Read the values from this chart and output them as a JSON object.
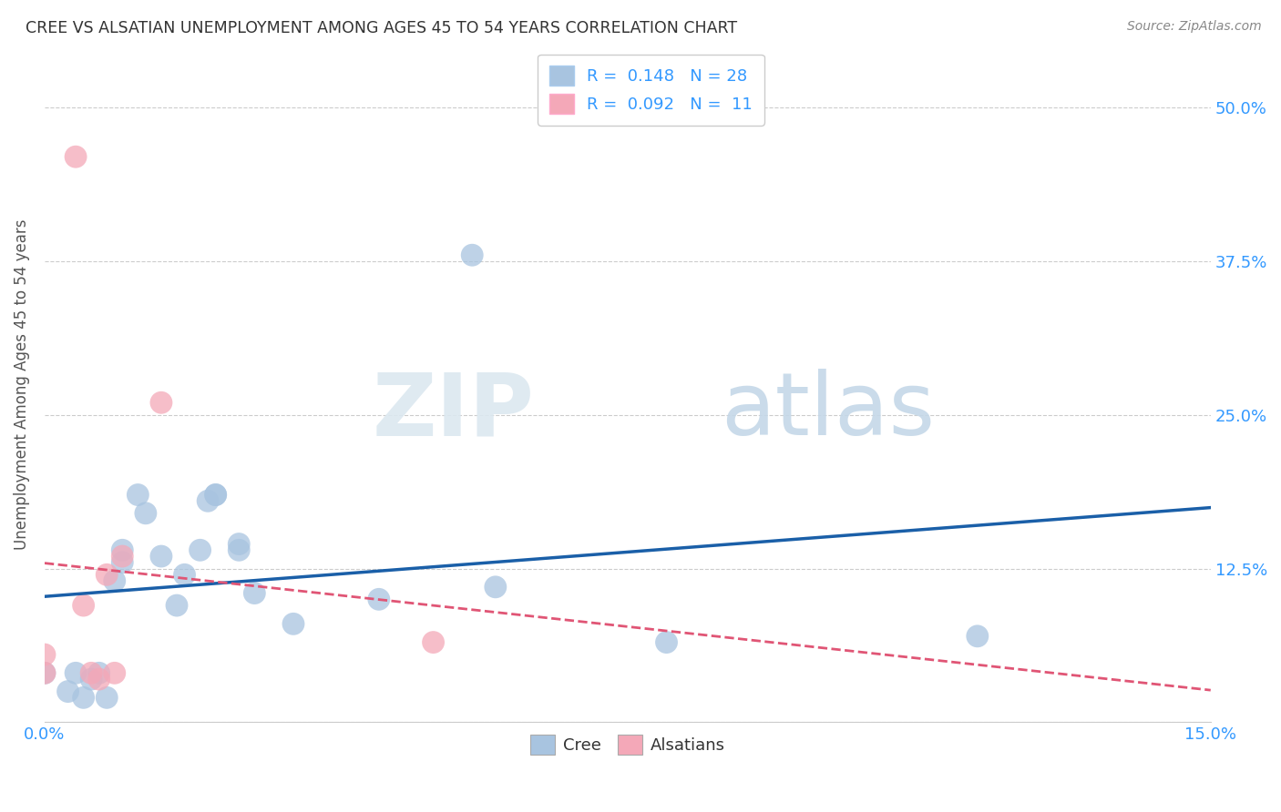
{
  "title": "CREE VS ALSATIAN UNEMPLOYMENT AMONG AGES 45 TO 54 YEARS CORRELATION CHART",
  "source": "Source: ZipAtlas.com",
  "ylabel": "Unemployment Among Ages 45 to 54 years",
  "xlim": [
    0.0,
    0.15
  ],
  "ylim": [
    0.0,
    0.55
  ],
  "yticks": [
    0.0,
    0.125,
    0.25,
    0.375,
    0.5
  ],
  "ytick_labels_right": [
    "",
    "12.5%",
    "25.0%",
    "37.5%",
    "50.0%"
  ],
  "xticks": [
    0.0,
    0.03,
    0.06,
    0.09,
    0.12,
    0.15
  ],
  "xtick_labels": [
    "0.0%",
    "",
    "",
    "",
    "",
    "15.0%"
  ],
  "cree_color": "#a8c4e0",
  "alsatian_color": "#f4a8b8",
  "cree_line_color": "#1a5fa8",
  "alsatian_line_color": "#e05575",
  "cree_R": 0.148,
  "cree_N": 28,
  "alsatian_R": 0.092,
  "alsatian_N": 11,
  "cree_x": [
    0.0,
    0.003,
    0.004,
    0.005,
    0.006,
    0.007,
    0.008,
    0.009,
    0.01,
    0.01,
    0.012,
    0.013,
    0.015,
    0.017,
    0.018,
    0.02,
    0.021,
    0.022,
    0.022,
    0.025,
    0.025,
    0.027,
    0.032,
    0.043,
    0.055,
    0.058,
    0.08,
    0.12
  ],
  "cree_y": [
    0.04,
    0.025,
    0.04,
    0.02,
    0.035,
    0.04,
    0.02,
    0.115,
    0.13,
    0.14,
    0.185,
    0.17,
    0.135,
    0.095,
    0.12,
    0.14,
    0.18,
    0.185,
    0.185,
    0.14,
    0.145,
    0.105,
    0.08,
    0.1,
    0.38,
    0.11,
    0.065,
    0.07
  ],
  "alsatian_x": [
    0.0,
    0.0,
    0.004,
    0.005,
    0.006,
    0.007,
    0.008,
    0.009,
    0.01,
    0.015,
    0.05
  ],
  "alsatian_y": [
    0.04,
    0.055,
    0.46,
    0.095,
    0.04,
    0.035,
    0.12,
    0.04,
    0.135,
    0.26,
    0.065
  ],
  "background_color": "#ffffff",
  "grid_color": "#cccccc",
  "legend_text_color": "#3399ff",
  "tick_color": "#3399ff",
  "title_color": "#333333",
  "source_color": "#888888",
  "ylabel_color": "#555555"
}
